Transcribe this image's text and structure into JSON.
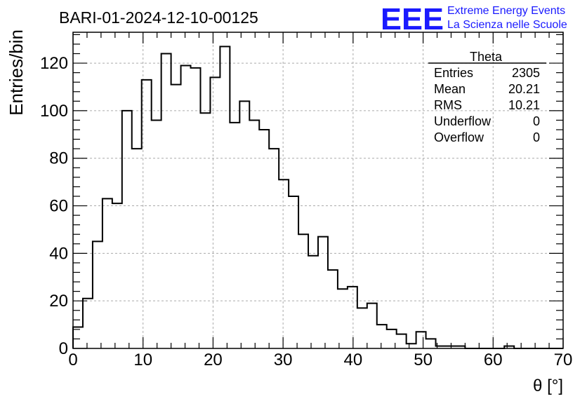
{
  "header": {
    "run_title": "BARI-01-2024-12-10-00125",
    "logo_text": "EEE",
    "logo_line1": "Extreme Energy Events",
    "logo_line2": "La Scienza nelle Scuole",
    "logo_color": "#1a1aff"
  },
  "stats": {
    "title": "Theta",
    "rows": [
      {
        "label": "Entries",
        "value": "2305"
      },
      {
        "label": "Mean",
        "value": "20.21"
      },
      {
        "label": "RMS",
        "value": "10.21"
      },
      {
        "label": "Underflow",
        "value": "0"
      },
      {
        "label": "Overflow",
        "value": "0"
      }
    ]
  },
  "chart_data": {
    "type": "histogram",
    "xlabel": "θ [°]",
    "ylabel": "Entries/bin",
    "xlim": [
      0,
      70
    ],
    "ylim": [
      0,
      133
    ],
    "bin_width": 1.4,
    "x_ticks": [
      0,
      10,
      20,
      30,
      40,
      50,
      60,
      70
    ],
    "y_ticks": [
      0,
      20,
      40,
      60,
      80,
      100,
      120
    ],
    "grid": true,
    "values": [
      9,
      21,
      45,
      63,
      61,
      100,
      84,
      113,
      96,
      124,
      111,
      119,
      118,
      99,
      114,
      127,
      95,
      104,
      96,
      92,
      84,
      71,
      64,
      48,
      39,
      47,
      33,
      25,
      26,
      17,
      19,
      10,
      8,
      6,
      2,
      7,
      4,
      1,
      1,
      1,
      0,
      0,
      0,
      0,
      1,
      0,
      0,
      0,
      0,
      0
    ],
    "line_color": "#000000"
  }
}
